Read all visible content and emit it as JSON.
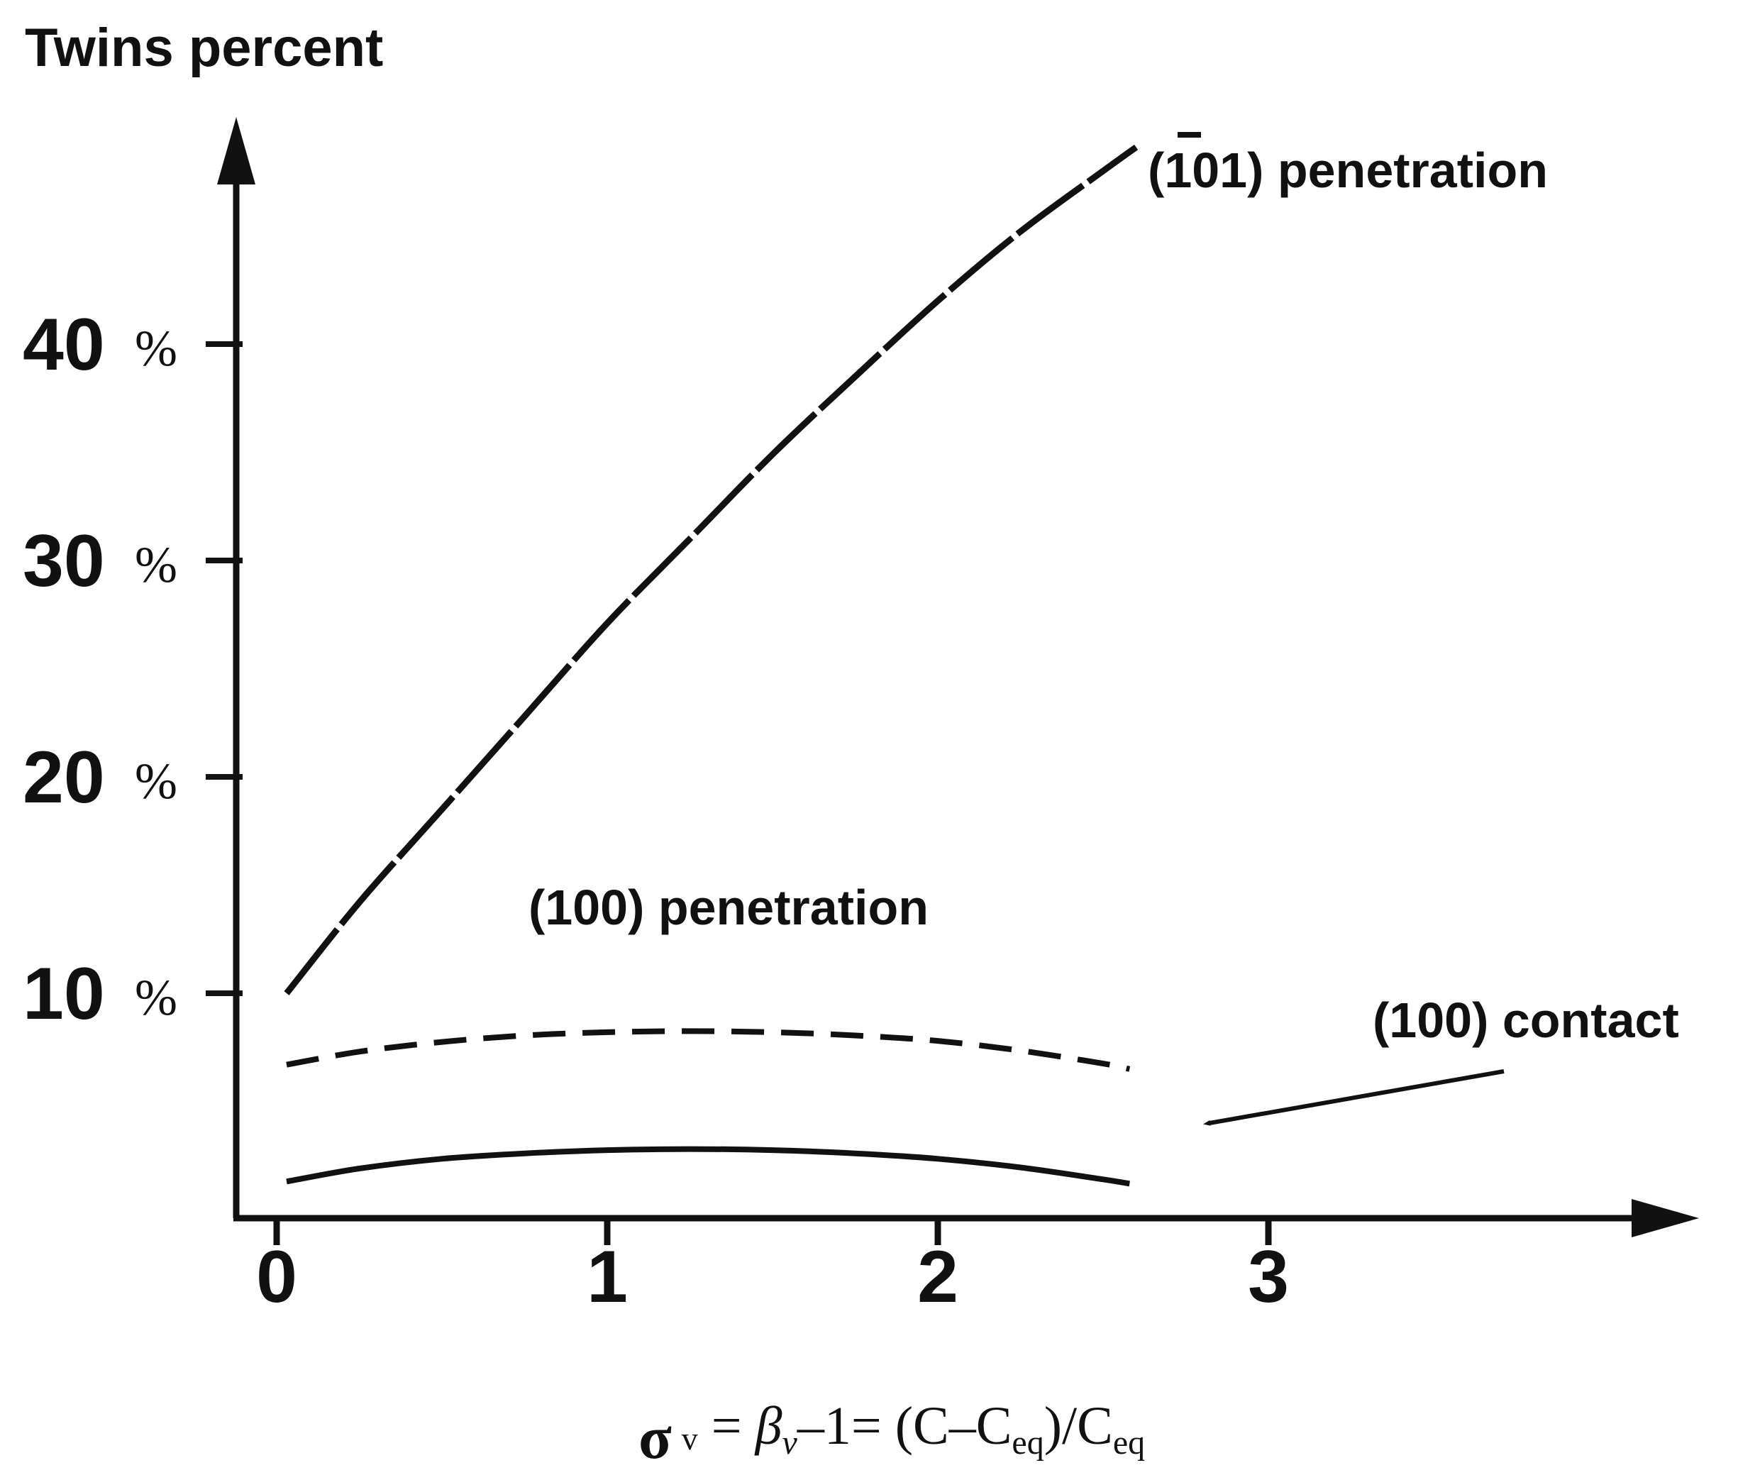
{
  "chart_data": {
    "type": "line",
    "ylabel": "Twins percent",
    "xlim": [
      0,
      4.2
    ],
    "ylim": [
      0,
      50
    ],
    "x_ticks": [
      "0",
      "1",
      "2",
      "3"
    ],
    "y_ticks": [
      {
        "value": 10,
        "label": "10",
        "unit": "%"
      },
      {
        "value": 20,
        "label": "20",
        "unit": "%"
      },
      {
        "value": 30,
        "label": "30",
        "unit": "%"
      },
      {
        "value": 40,
        "label": "40",
        "unit": "%"
      }
    ],
    "xlabel": {
      "sigma": "σ",
      "sub_v": "v",
      "eq1": " = ",
      "beta": "β",
      "beta_sub": "v",
      "rest": "–1= (C–C",
      "sub_eq1": "eq",
      "rest2": ")/C",
      "sub_eq2": "eq"
    },
    "series": [
      {
        "name": "(101) penetration",
        "name_parts": {
          "open": "(",
          "barred": "1",
          "rest": "01) penetration"
        },
        "style": "long-dash",
        "x": [
          0.03,
          0.25,
          0.5,
          0.75,
          1.0,
          1.25,
          1.5,
          1.75,
          2.0,
          2.25,
          2.5,
          2.6
        ],
        "y": [
          10.0,
          14.2,
          18.5,
          22.8,
          27.1,
          31.0,
          34.9,
          38.5,
          42.0,
          45.2,
          48.0,
          49.1
        ]
      },
      {
        "name": "(100) penetration",
        "style": "dash",
        "x": [
          0.03,
          0.25,
          0.5,
          0.75,
          1.0,
          1.25,
          1.5,
          1.75,
          2.0,
          2.25,
          2.5,
          2.58
        ],
        "y": [
          6.7,
          7.3,
          7.75,
          8.05,
          8.2,
          8.25,
          8.2,
          8.05,
          7.8,
          7.35,
          6.75,
          6.5
        ]
      },
      {
        "name": "(100) contact",
        "style": "solid",
        "x": [
          0.03,
          0.25,
          0.5,
          0.75,
          1.0,
          1.25,
          1.5,
          1.75,
          2.0,
          2.25,
          2.5,
          2.58
        ],
        "y": [
          1.3,
          1.9,
          2.35,
          2.6,
          2.75,
          2.8,
          2.75,
          2.6,
          2.35,
          1.95,
          1.4,
          1.2
        ]
      }
    ]
  }
}
